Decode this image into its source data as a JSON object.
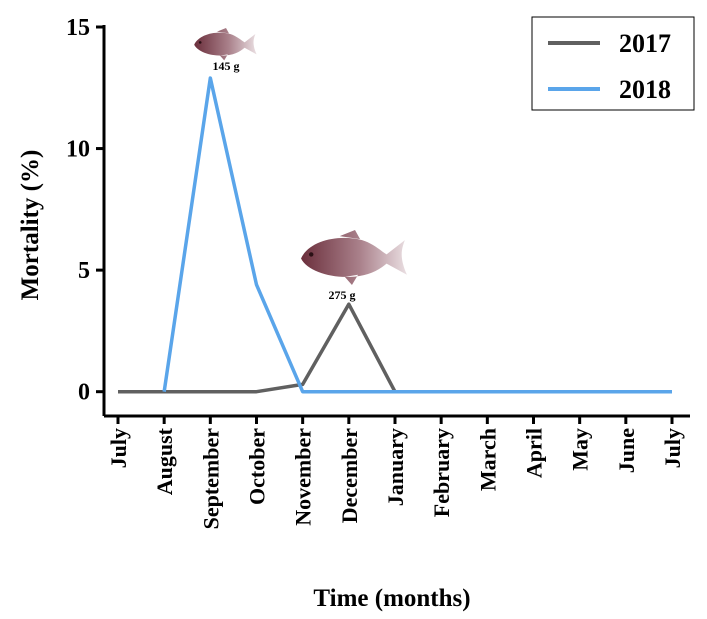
{
  "chart_data": {
    "type": "line",
    "x_label": "Time (months)",
    "y_label": "Mortality (%)",
    "categories": [
      "July",
      "August",
      "September",
      "October",
      "November",
      "December",
      "January",
      "February",
      "March",
      "April",
      "May",
      "June",
      "July"
    ],
    "series": [
      {
        "name": "2017",
        "color": "#606060",
        "values": [
          0,
          0,
          0,
          0,
          0.3,
          3.6,
          0,
          0,
          0,
          0,
          0,
          0,
          0
        ]
      },
      {
        "name": "2018",
        "color": "#5aa5ea",
        "values": [
          null,
          0,
          12.9,
          4.4,
          0,
          0,
          0,
          0,
          0,
          0,
          0,
          0,
          0
        ]
      }
    ],
    "ylim": [
      -1,
      15
    ],
    "yticks": [
      0,
      5,
      10,
      15
    ],
    "annotations": [
      "145 g",
      "275 g"
    ],
    "legend": "top-right"
  }
}
